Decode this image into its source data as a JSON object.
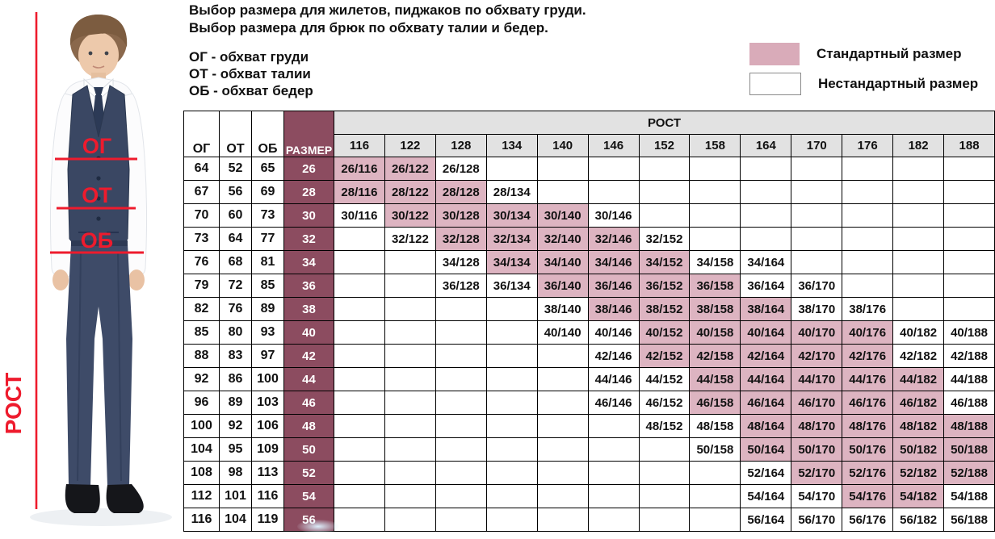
{
  "intro": {
    "line1": "Выбор размера для жилетов, пиджаков по обхвату груди.",
    "line2": "Выбор размера для брюк по обхвату талии и бедер."
  },
  "abbreviations": {
    "og": "ОГ - обхват груди",
    "ot": "ОТ - обхват талии",
    "ob": "ОБ - обхват бедер"
  },
  "figure_labels": {
    "chest": "ОГ",
    "waist": "ОТ",
    "hips": "ОБ",
    "height": "РОСТ",
    "annotation_color": "#ee1b2d"
  },
  "legend": {
    "items": [
      {
        "label": "Стандартный размер",
        "swatch_color": "#d9abb9",
        "type": "standard"
      },
      {
        "label": "Нестандартный размер",
        "swatch_color": "#ffffff",
        "type": "nonstandard"
      }
    ]
  },
  "table": {
    "corner_headers": [
      "ОГ",
      "ОТ",
      "ОБ"
    ],
    "size_header": "РАЗМЕР",
    "rost_header": "РОСТ",
    "heights": [
      "116",
      "122",
      "128",
      "134",
      "140",
      "146",
      "152",
      "158",
      "164",
      "170",
      "176",
      "182",
      "188"
    ],
    "colors": {
      "standard_bg": "#ddb4c1",
      "size_col_bg": "#8c4c60",
      "header_bg": "#e2e2e2"
    },
    "rows": [
      {
        "og": "64",
        "ot": "52",
        "ob": "65",
        "size": "26",
        "cells": [
          {
            "h": "116",
            "label": "26/116",
            "std": true
          },
          {
            "h": "122",
            "label": "26/122",
            "std": true
          },
          {
            "h": "128",
            "label": "26/128",
            "std": false
          }
        ]
      },
      {
        "og": "67",
        "ot": "56",
        "ob": "69",
        "size": "28",
        "cells": [
          {
            "h": "116",
            "label": "28/116",
            "std": true
          },
          {
            "h": "122",
            "label": "28/122",
            "std": true
          },
          {
            "h": "128",
            "label": "28/128",
            "std": true
          },
          {
            "h": "134",
            "label": "28/134",
            "std": false
          }
        ]
      },
      {
        "og": "70",
        "ot": "60",
        "ob": "73",
        "size": "30",
        "cells": [
          {
            "h": "116",
            "label": "30/116",
            "std": false
          },
          {
            "h": "122",
            "label": "30/122",
            "std": true
          },
          {
            "h": "128",
            "label": "30/128",
            "std": true
          },
          {
            "h": "134",
            "label": "30/134",
            "std": true
          },
          {
            "h": "140",
            "label": "30/140",
            "std": true
          },
          {
            "h": "146",
            "label": "30/146",
            "std": false
          }
        ]
      },
      {
        "og": "73",
        "ot": "64",
        "ob": "77",
        "size": "32",
        "cells": [
          {
            "h": "122",
            "label": "32/122",
            "std": false
          },
          {
            "h": "128",
            "label": "32/128",
            "std": true
          },
          {
            "h": "134",
            "label": "32/134",
            "std": true
          },
          {
            "h": "140",
            "label": "32/140",
            "std": true
          },
          {
            "h": "146",
            "label": "32/146",
            "std": true
          },
          {
            "h": "152",
            "label": "32/152",
            "std": false
          }
        ]
      },
      {
        "og": "76",
        "ot": "68",
        "ob": "81",
        "size": "34",
        "cells": [
          {
            "h": "128",
            "label": "34/128",
            "std": false
          },
          {
            "h": "134",
            "label": "34/134",
            "std": true
          },
          {
            "h": "140",
            "label": "34/140",
            "std": true
          },
          {
            "h": "146",
            "label": "34/146",
            "std": true
          },
          {
            "h": "152",
            "label": "34/152",
            "std": true
          },
          {
            "h": "158",
            "label": "34/158",
            "std": false
          },
          {
            "h": "164",
            "label": "34/164",
            "std": false
          }
        ]
      },
      {
        "og": "79",
        "ot": "72",
        "ob": "85",
        "size": "36",
        "cells": [
          {
            "h": "128",
            "label": "36/128",
            "std": false
          },
          {
            "h": "134",
            "label": "36/134",
            "std": false
          },
          {
            "h": "140",
            "label": "36/140",
            "std": true
          },
          {
            "h": "146",
            "label": "36/146",
            "std": true
          },
          {
            "h": "152",
            "label": "36/152",
            "std": true
          },
          {
            "h": "158",
            "label": "36/158",
            "std": true
          },
          {
            "h": "164",
            "label": "36/164",
            "std": false
          },
          {
            "h": "170",
            "label": "36/170",
            "std": false
          }
        ]
      },
      {
        "og": "82",
        "ot": "76",
        "ob": "89",
        "size": "38",
        "cells": [
          {
            "h": "140",
            "label": "38/140",
            "std": false
          },
          {
            "h": "146",
            "label": "38/146",
            "std": true
          },
          {
            "h": "152",
            "label": "38/152",
            "std": true
          },
          {
            "h": "158",
            "label": "38/158",
            "std": true
          },
          {
            "h": "164",
            "label": "38/164",
            "std": true
          },
          {
            "h": "170",
            "label": "38/170",
            "std": false
          },
          {
            "h": "176",
            "label": "38/176",
            "std": false
          }
        ]
      },
      {
        "og": "85",
        "ot": "80",
        "ob": "93",
        "size": "40",
        "cells": [
          {
            "h": "140",
            "label": "40/140",
            "std": false
          },
          {
            "h": "146",
            "label": "40/146",
            "std": false
          },
          {
            "h": "152",
            "label": "40/152",
            "std": true
          },
          {
            "h": "158",
            "label": "40/158",
            "std": true
          },
          {
            "h": "164",
            "label": "40/164",
            "std": true
          },
          {
            "h": "170",
            "label": "40/170",
            "std": true
          },
          {
            "h": "176",
            "label": "40/176",
            "std": true
          },
          {
            "h": "182",
            "label": "40/182",
            "std": false
          },
          {
            "h": "188",
            "label": "40/188",
            "std": false
          }
        ]
      },
      {
        "og": "88",
        "ot": "83",
        "ob": "97",
        "size": "42",
        "cells": [
          {
            "h": "146",
            "label": "42/146",
            "std": false
          },
          {
            "h": "152",
            "label": "42/152",
            "std": true
          },
          {
            "h": "158",
            "label": "42/158",
            "std": true
          },
          {
            "h": "164",
            "label": "42/164",
            "std": true
          },
          {
            "h": "170",
            "label": "42/170",
            "std": true
          },
          {
            "h": "176",
            "label": "42/176",
            "std": true
          },
          {
            "h": "182",
            "label": "42/182",
            "std": false
          },
          {
            "h": "188",
            "label": "42/188",
            "std": false
          }
        ]
      },
      {
        "og": "92",
        "ot": "86",
        "ob": "100",
        "size": "44",
        "cells": [
          {
            "h": "146",
            "label": "44/146",
            "std": false
          },
          {
            "h": "152",
            "label": "44/152",
            "std": false
          },
          {
            "h": "158",
            "label": "44/158",
            "std": true
          },
          {
            "h": "164",
            "label": "44/164",
            "std": true
          },
          {
            "h": "170",
            "label": "44/170",
            "std": true
          },
          {
            "h": "176",
            "label": "44/176",
            "std": true
          },
          {
            "h": "182",
            "label": "44/182",
            "std": true
          },
          {
            "h": "188",
            "label": "44/188",
            "std": false
          }
        ]
      },
      {
        "og": "96",
        "ot": "89",
        "ob": "103",
        "size": "46",
        "cells": [
          {
            "h": "146",
            "label": "46/146",
            "std": false
          },
          {
            "h": "152",
            "label": "46/152",
            "std": false
          },
          {
            "h": "158",
            "label": "46/158",
            "std": true
          },
          {
            "h": "164",
            "label": "46/164",
            "std": true
          },
          {
            "h": "170",
            "label": "46/170",
            "std": true
          },
          {
            "h": "176",
            "label": "46/176",
            "std": true
          },
          {
            "h": "182",
            "label": "46/182",
            "std": true
          },
          {
            "h": "188",
            "label": "46/188",
            "std": false
          }
        ]
      },
      {
        "og": "100",
        "ot": "92",
        "ob": "106",
        "size": "48",
        "cells": [
          {
            "h": "152",
            "label": "48/152",
            "std": false
          },
          {
            "h": "158",
            "label": "48/158",
            "std": false
          },
          {
            "h": "164",
            "label": "48/164",
            "std": true
          },
          {
            "h": "170",
            "label": "48/170",
            "std": true
          },
          {
            "h": "176",
            "label": "48/176",
            "std": true
          },
          {
            "h": "182",
            "label": "48/182",
            "std": true
          },
          {
            "h": "188",
            "label": "48/188",
            "std": true
          }
        ]
      },
      {
        "og": "104",
        "ot": "95",
        "ob": "109",
        "size": "50",
        "cells": [
          {
            "h": "158",
            "label": "50/158",
            "std": false
          },
          {
            "h": "164",
            "label": "50/164",
            "std": true
          },
          {
            "h": "170",
            "label": "50/170",
            "std": true
          },
          {
            "h": "176",
            "label": "50/176",
            "std": true
          },
          {
            "h": "182",
            "label": "50/182",
            "std": true
          },
          {
            "h": "188",
            "label": "50/188",
            "std": true
          }
        ]
      },
      {
        "og": "108",
        "ot": "98",
        "ob": "113",
        "size": "52",
        "cells": [
          {
            "h": "164",
            "label": "52/164",
            "std": false
          },
          {
            "h": "170",
            "label": "52/170",
            "std": true
          },
          {
            "h": "176",
            "label": "52/176",
            "std": true
          },
          {
            "h": "182",
            "label": "52/182",
            "std": true
          },
          {
            "h": "188",
            "label": "52/188",
            "std": true
          }
        ]
      },
      {
        "og": "112",
        "ot": "101",
        "ob": "116",
        "size": "54",
        "cells": [
          {
            "h": "164",
            "label": "54/164",
            "std": false
          },
          {
            "h": "170",
            "label": "54/170",
            "std": false
          },
          {
            "h": "176",
            "label": "54/176",
            "std": true
          },
          {
            "h": "182",
            "label": "54/182",
            "std": true
          },
          {
            "h": "188",
            "label": "54/188",
            "std": false
          }
        ]
      },
      {
        "og": "116",
        "ot": "104",
        "ob": "119",
        "size": "56",
        "cells": [
          {
            "h": "164",
            "label": "56/164",
            "std": false
          },
          {
            "h": "170",
            "label": "56/170",
            "std": false
          },
          {
            "h": "176",
            "label": "56/176",
            "std": false
          },
          {
            "h": "182",
            "label": "56/182",
            "std": false
          },
          {
            "h": "188",
            "label": "56/188",
            "std": false
          }
        ]
      }
    ]
  }
}
